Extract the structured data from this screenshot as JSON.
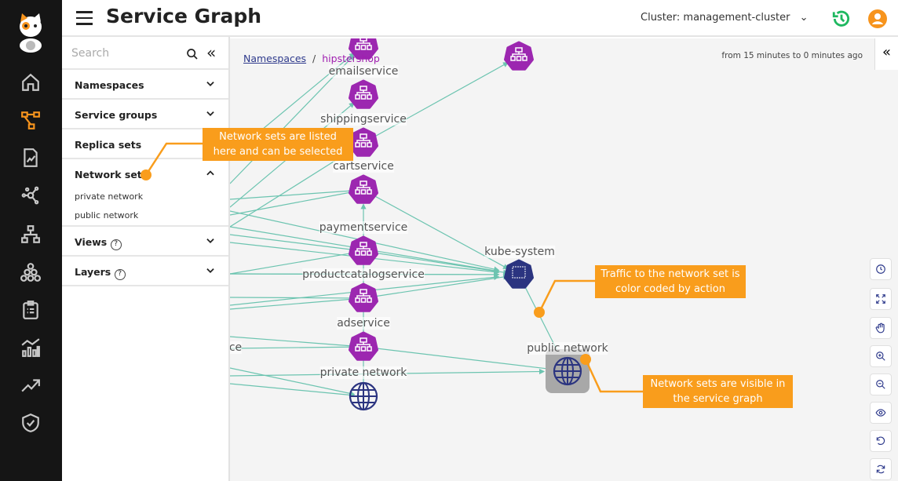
{
  "header": {
    "title": "Service Graph",
    "cluster": "Cluster: management-cluster"
  },
  "nav": {
    "items": [
      "logo-icon",
      "home-icon",
      "service-graph-icon",
      "policy-icon",
      "network-icon",
      "topology-icon",
      "nodes-icon",
      "compliance-icon",
      "dashboard-icon",
      "trending-icon",
      "shield-icon"
    ],
    "active": "service-graph-icon",
    "active_color": "#f7941d"
  },
  "panel": {
    "search_placeholder": "Search",
    "sections": [
      {
        "label": "Namespaces"
      },
      {
        "label": "Service groups"
      },
      {
        "label": "Replica sets"
      },
      {
        "label": "Network sets",
        "items": [
          "private network",
          "public network"
        ]
      },
      {
        "label": "Views"
      },
      {
        "label": "Layers"
      }
    ]
  },
  "canvas": {
    "breadcrumb": {
      "root": "Namespaces",
      "separator": "/",
      "current": "hipstershop"
    },
    "time_range": "from 15 minutes to 0 minutes ago",
    "nodes": {
      "email": "emailservice",
      "shipping": "shippingservice",
      "cart": "cartservice",
      "payment": "paymentservice",
      "productcatalog": "productcatalogservice",
      "ad": "adservice",
      "partial": "ce",
      "private": "private network",
      "kube": "kube-system",
      "public": "public network"
    },
    "tools": [
      "clock-icon",
      "fit-icon",
      "pan-icon",
      "zoom-in-icon",
      "zoom-out-icon",
      "eye-icon",
      "undo-icon",
      "refresh-icon"
    ],
    "colors": {
      "service": "#9c27b0",
      "namespace": "#2b3480",
      "edge": "#6cc4b0",
      "callout": "#f99d1c"
    }
  },
  "callouts": {
    "list": "Network sets are listed here and can be selected",
    "traffic": "Traffic to the network set is color coded by action",
    "visible": "Network sets are visible in the service graph"
  }
}
